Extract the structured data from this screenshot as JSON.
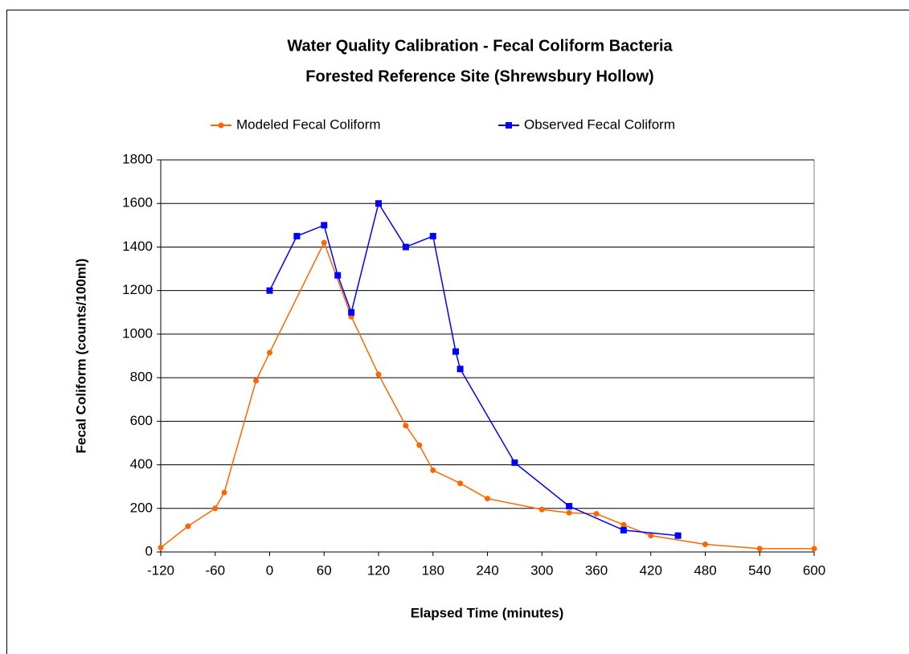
{
  "chart_data": {
    "type": "line",
    "title": "Water Quality Calibration - Fecal Coliform Bacteria",
    "subtitle": "Forested Reference Site (Shrewsbury Hollow)",
    "x_label": "Elapsed Time (minutes)",
    "y_label": "Fecal Coliform (counts/100ml)",
    "xlim": [
      -120,
      600
    ],
    "xticks": [
      -120,
      -60,
      0,
      60,
      120,
      180,
      240,
      300,
      360,
      420,
      480,
      540,
      600
    ],
    "ylim": [
      0,
      1800
    ],
    "yticks": [
      0,
      200,
      400,
      600,
      800,
      1000,
      1200,
      1400,
      1600,
      1800
    ],
    "grid": true,
    "legend": "top",
    "series": [
      {
        "name": "Modeled Fecal Coliform",
        "color": "#ff6600",
        "marker": "circle",
        "x": [
          -120,
          -90,
          -60,
          -50,
          -15,
          0,
          60,
          90,
          120,
          150,
          165,
          180,
          210,
          240,
          300,
          330,
          360,
          390,
          420,
          480,
          540,
          600
        ],
        "values": [
          20,
          118,
          200,
          273,
          786,
          915,
          1420,
          1080,
          815,
          580,
          490,
          375,
          315,
          245,
          195,
          180,
          175,
          125,
          75,
          35,
          15,
          15
        ]
      },
      {
        "name": "Observed Fecal Coliform",
        "color": "#0000ff",
        "marker": "square",
        "x": [
          0,
          30,
          60,
          75,
          90,
          120,
          150,
          180,
          205,
          210,
          270,
          330,
          390,
          450
        ],
        "values": [
          1200,
          1450,
          1500,
          1270,
          1100,
          1600,
          1400,
          1450,
          920,
          840,
          410,
          210,
          100,
          75
        ]
      }
    ]
  }
}
